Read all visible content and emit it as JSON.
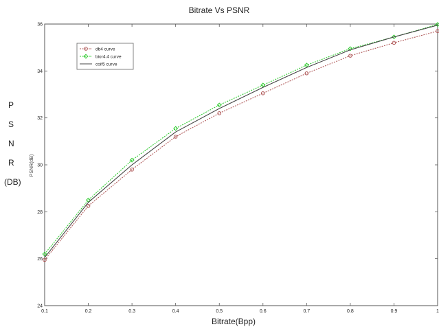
{
  "chart_data": {
    "type": "line",
    "title": "Bitrate Vs PSNR",
    "xlabel": "Bitrate(Bpp)",
    "ylabel_outer": [
      "P",
      "S",
      "N",
      "R",
      "(DB)"
    ],
    "ylabel_inner": "PSNR(dB)",
    "x": [
      0.1,
      0.2,
      0.3,
      0.4,
      0.5,
      0.6,
      0.7,
      0.8,
      0.9,
      1
    ],
    "xlim": [
      0.1,
      1
    ],
    "ylim": [
      24,
      36
    ],
    "xticks": [
      "0.1",
      "0.2",
      "0.3",
      "0.4",
      "0.5",
      "0.6",
      "0.7",
      "0.8",
      "0.9",
      "1"
    ],
    "yticks": [
      "24",
      "26",
      "28",
      "30",
      "32",
      "34",
      "36"
    ],
    "grid": false,
    "legend_position": "top-left",
    "series": [
      {
        "name": "db4 curve",
        "color": "#b05a5a",
        "style": "dotted",
        "marker": "circle",
        "values": [
          25.95,
          28.25,
          29.8,
          31.2,
          32.2,
          33.05,
          33.9,
          34.65,
          35.2,
          35.7
        ]
      },
      {
        "name": "bior4.4 curve",
        "color": "#33cc33",
        "style": "dotted",
        "marker": "diamond",
        "values": [
          26.2,
          28.5,
          30.2,
          31.55,
          32.55,
          33.4,
          34.25,
          34.95,
          35.45,
          35.98
        ]
      },
      {
        "name": "coif5 curve",
        "color": "#444444",
        "style": "solid",
        "marker": "none",
        "values": [
          26.05,
          28.4,
          30.0,
          31.4,
          32.4,
          33.3,
          34.15,
          34.9,
          35.45,
          35.95
        ]
      }
    ]
  }
}
